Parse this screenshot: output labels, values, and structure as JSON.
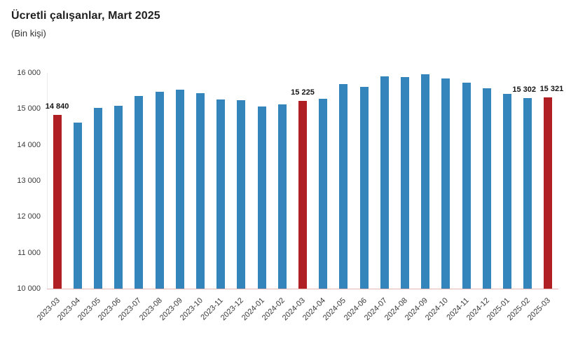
{
  "header": {
    "title": "Ücretli çalışanlar, Mart 2025",
    "subtitle": "(Bin kişi)"
  },
  "chart_data": {
    "type": "bar",
    "title": "Ücretli çalışanlar, Mart 2025",
    "subtitle": "(Bin kişi)",
    "xlabel": "",
    "ylabel": "Bin kişi",
    "ylim": [
      10000,
      16000
    ],
    "ytick_step": 1000,
    "ytick_labels": [
      "10 000",
      "11 000",
      "12 000",
      "13 000",
      "14 000",
      "15 000",
      "16 000"
    ],
    "grid": false,
    "legend": "none",
    "categories": [
      "2023-03",
      "2023-04",
      "2023-05",
      "2023-06",
      "2023-07",
      "2023-08",
      "2023-09",
      "2023-10",
      "2023-11",
      "2023-12",
      "2024-01",
      "2024-02",
      "2024-03",
      "2024-04",
      "2024-05",
      "2024-06",
      "2024-07",
      "2024-08",
      "2024-09",
      "2024-10",
      "2024-11",
      "2024-12",
      "2025-01",
      "2025-02",
      "2025-03"
    ],
    "values": [
      14840,
      14610,
      15020,
      15080,
      15350,
      15470,
      15540,
      15440,
      15270,
      15240,
      15070,
      15120,
      15225,
      15280,
      15690,
      15620,
      15900,
      15890,
      15970,
      15850,
      15730,
      15580,
      15410,
      15302,
      15321
    ],
    "highlighted_indices": [
      0,
      12,
      24
    ],
    "data_labels": [
      {
        "index": 0,
        "text": "14 840",
        "dx": 0
      },
      {
        "index": 12,
        "text": "15 225",
        "dx": 0
      },
      {
        "index": 23,
        "text": "15 302",
        "dx": -5
      },
      {
        "index": 24,
        "text": "15 321",
        "dx": 5
      }
    ],
    "colors": {
      "bar": "#3585bd",
      "highlight": "#b01f24",
      "axis_line_x": "#e4b6b6",
      "axis_line_y": "#ececec",
      "tick_text": "#3a3a3a",
      "label_text": "#141414",
      "title_text": "#1f1f1f"
    }
  }
}
